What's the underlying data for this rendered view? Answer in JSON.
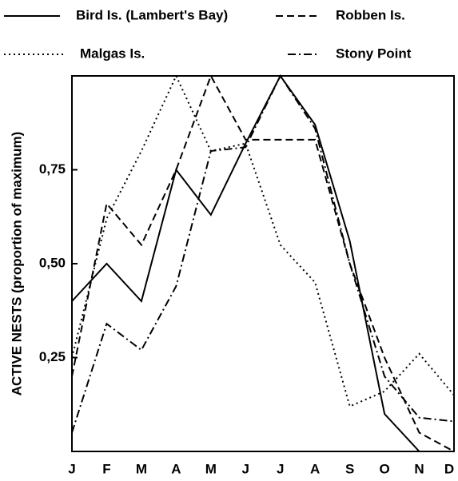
{
  "chart_data": {
    "type": "line",
    "ylabel": "ACTIVE NESTS (proportion of maximum)",
    "categories": [
      "J",
      "F",
      "M",
      "A",
      "M",
      "J",
      "J",
      "A",
      "S",
      "O",
      "N",
      "D"
    ],
    "ylim": [
      0,
      1
    ],
    "yticks": [
      {
        "value": 0.25,
        "label": "0,25"
      },
      {
        "value": 0.5,
        "label": "0,50"
      },
      {
        "value": 0.75,
        "label": "0,75"
      }
    ],
    "series": [
      {
        "name": "Bird Is. (Lambert's Bay)",
        "color": "#000000",
        "style": "solid",
        "values": [
          0.4,
          0.5,
          0.4,
          0.75,
          0.63,
          0.82,
          1.0,
          0.87,
          0.56,
          0.1,
          0.0,
          null
        ]
      },
      {
        "name": "Robben Is.",
        "color": "#000000",
        "style": "dashed",
        "values": [
          0.2,
          0.66,
          0.55,
          0.75,
          1.0,
          0.83,
          0.83,
          0.83,
          0.5,
          0.25,
          0.05,
          0.0
        ]
      },
      {
        "name": "Malgas Is.",
        "color": "#000000",
        "style": "dotted",
        "values": [
          0.25,
          0.62,
          0.8,
          1.0,
          0.8,
          0.82,
          0.55,
          0.45,
          0.12,
          0.16,
          0.26,
          0.15
        ]
      },
      {
        "name": "Stony Point",
        "color": "#000000",
        "style": "dashdot",
        "values": [
          0.05,
          0.34,
          0.27,
          0.44,
          0.8,
          0.81,
          1.0,
          0.86,
          0.5,
          0.2,
          0.09,
          0.08
        ]
      }
    ]
  }
}
